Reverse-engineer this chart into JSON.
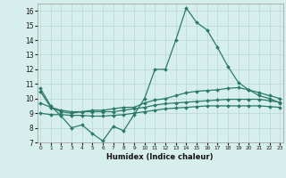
{
  "title": "",
  "xlabel": "Humidex (Indice chaleur)",
  "x": [
    0,
    1,
    2,
    3,
    4,
    5,
    6,
    7,
    8,
    9,
    10,
    11,
    12,
    13,
    14,
    15,
    16,
    17,
    18,
    19,
    20,
    21,
    22,
    23
  ],
  "line1": [
    10.7,
    9.5,
    8.8,
    8.0,
    8.2,
    7.6,
    7.1,
    8.1,
    7.8,
    8.9,
    10.0,
    12.0,
    12.0,
    14.0,
    16.2,
    15.2,
    14.7,
    13.5,
    12.2,
    11.1,
    10.6,
    10.2,
    10.0,
    9.7
  ],
  "line2": [
    10.5,
    9.4,
    9.1,
    9.0,
    9.1,
    9.2,
    9.2,
    9.3,
    9.4,
    9.4,
    9.7,
    9.9,
    10.0,
    10.2,
    10.4,
    10.5,
    10.55,
    10.6,
    10.7,
    10.75,
    10.6,
    10.4,
    10.2,
    10.0
  ],
  "line3": [
    9.7,
    9.4,
    9.2,
    9.1,
    9.1,
    9.1,
    9.1,
    9.1,
    9.2,
    9.3,
    9.4,
    9.55,
    9.65,
    9.7,
    9.75,
    9.8,
    9.85,
    9.9,
    9.95,
    9.95,
    9.95,
    9.95,
    9.85,
    9.75
  ],
  "line4": [
    9.0,
    8.9,
    8.9,
    8.85,
    8.85,
    8.8,
    8.8,
    8.85,
    8.9,
    9.0,
    9.1,
    9.2,
    9.3,
    9.35,
    9.4,
    9.45,
    9.5,
    9.5,
    9.5,
    9.5,
    9.5,
    9.5,
    9.45,
    9.4
  ],
  "line_color": "#2a7a6a",
  "bg_color": "#d6eeec",
  "grid_color": "#b8d8d4",
  "ylim": [
    7,
    16.5
  ],
  "yticks": [
    7,
    8,
    9,
    10,
    11,
    12,
    13,
    14,
    15,
    16
  ],
  "xlim": [
    -0.3,
    23.3
  ],
  "xticks": [
    0,
    1,
    2,
    3,
    4,
    5,
    6,
    7,
    8,
    9,
    10,
    11,
    12,
    13,
    14,
    15,
    16,
    17,
    18,
    19,
    20,
    21,
    22,
    23
  ],
  "marker": "D",
  "markersize": 2.0,
  "linewidth": 0.9
}
